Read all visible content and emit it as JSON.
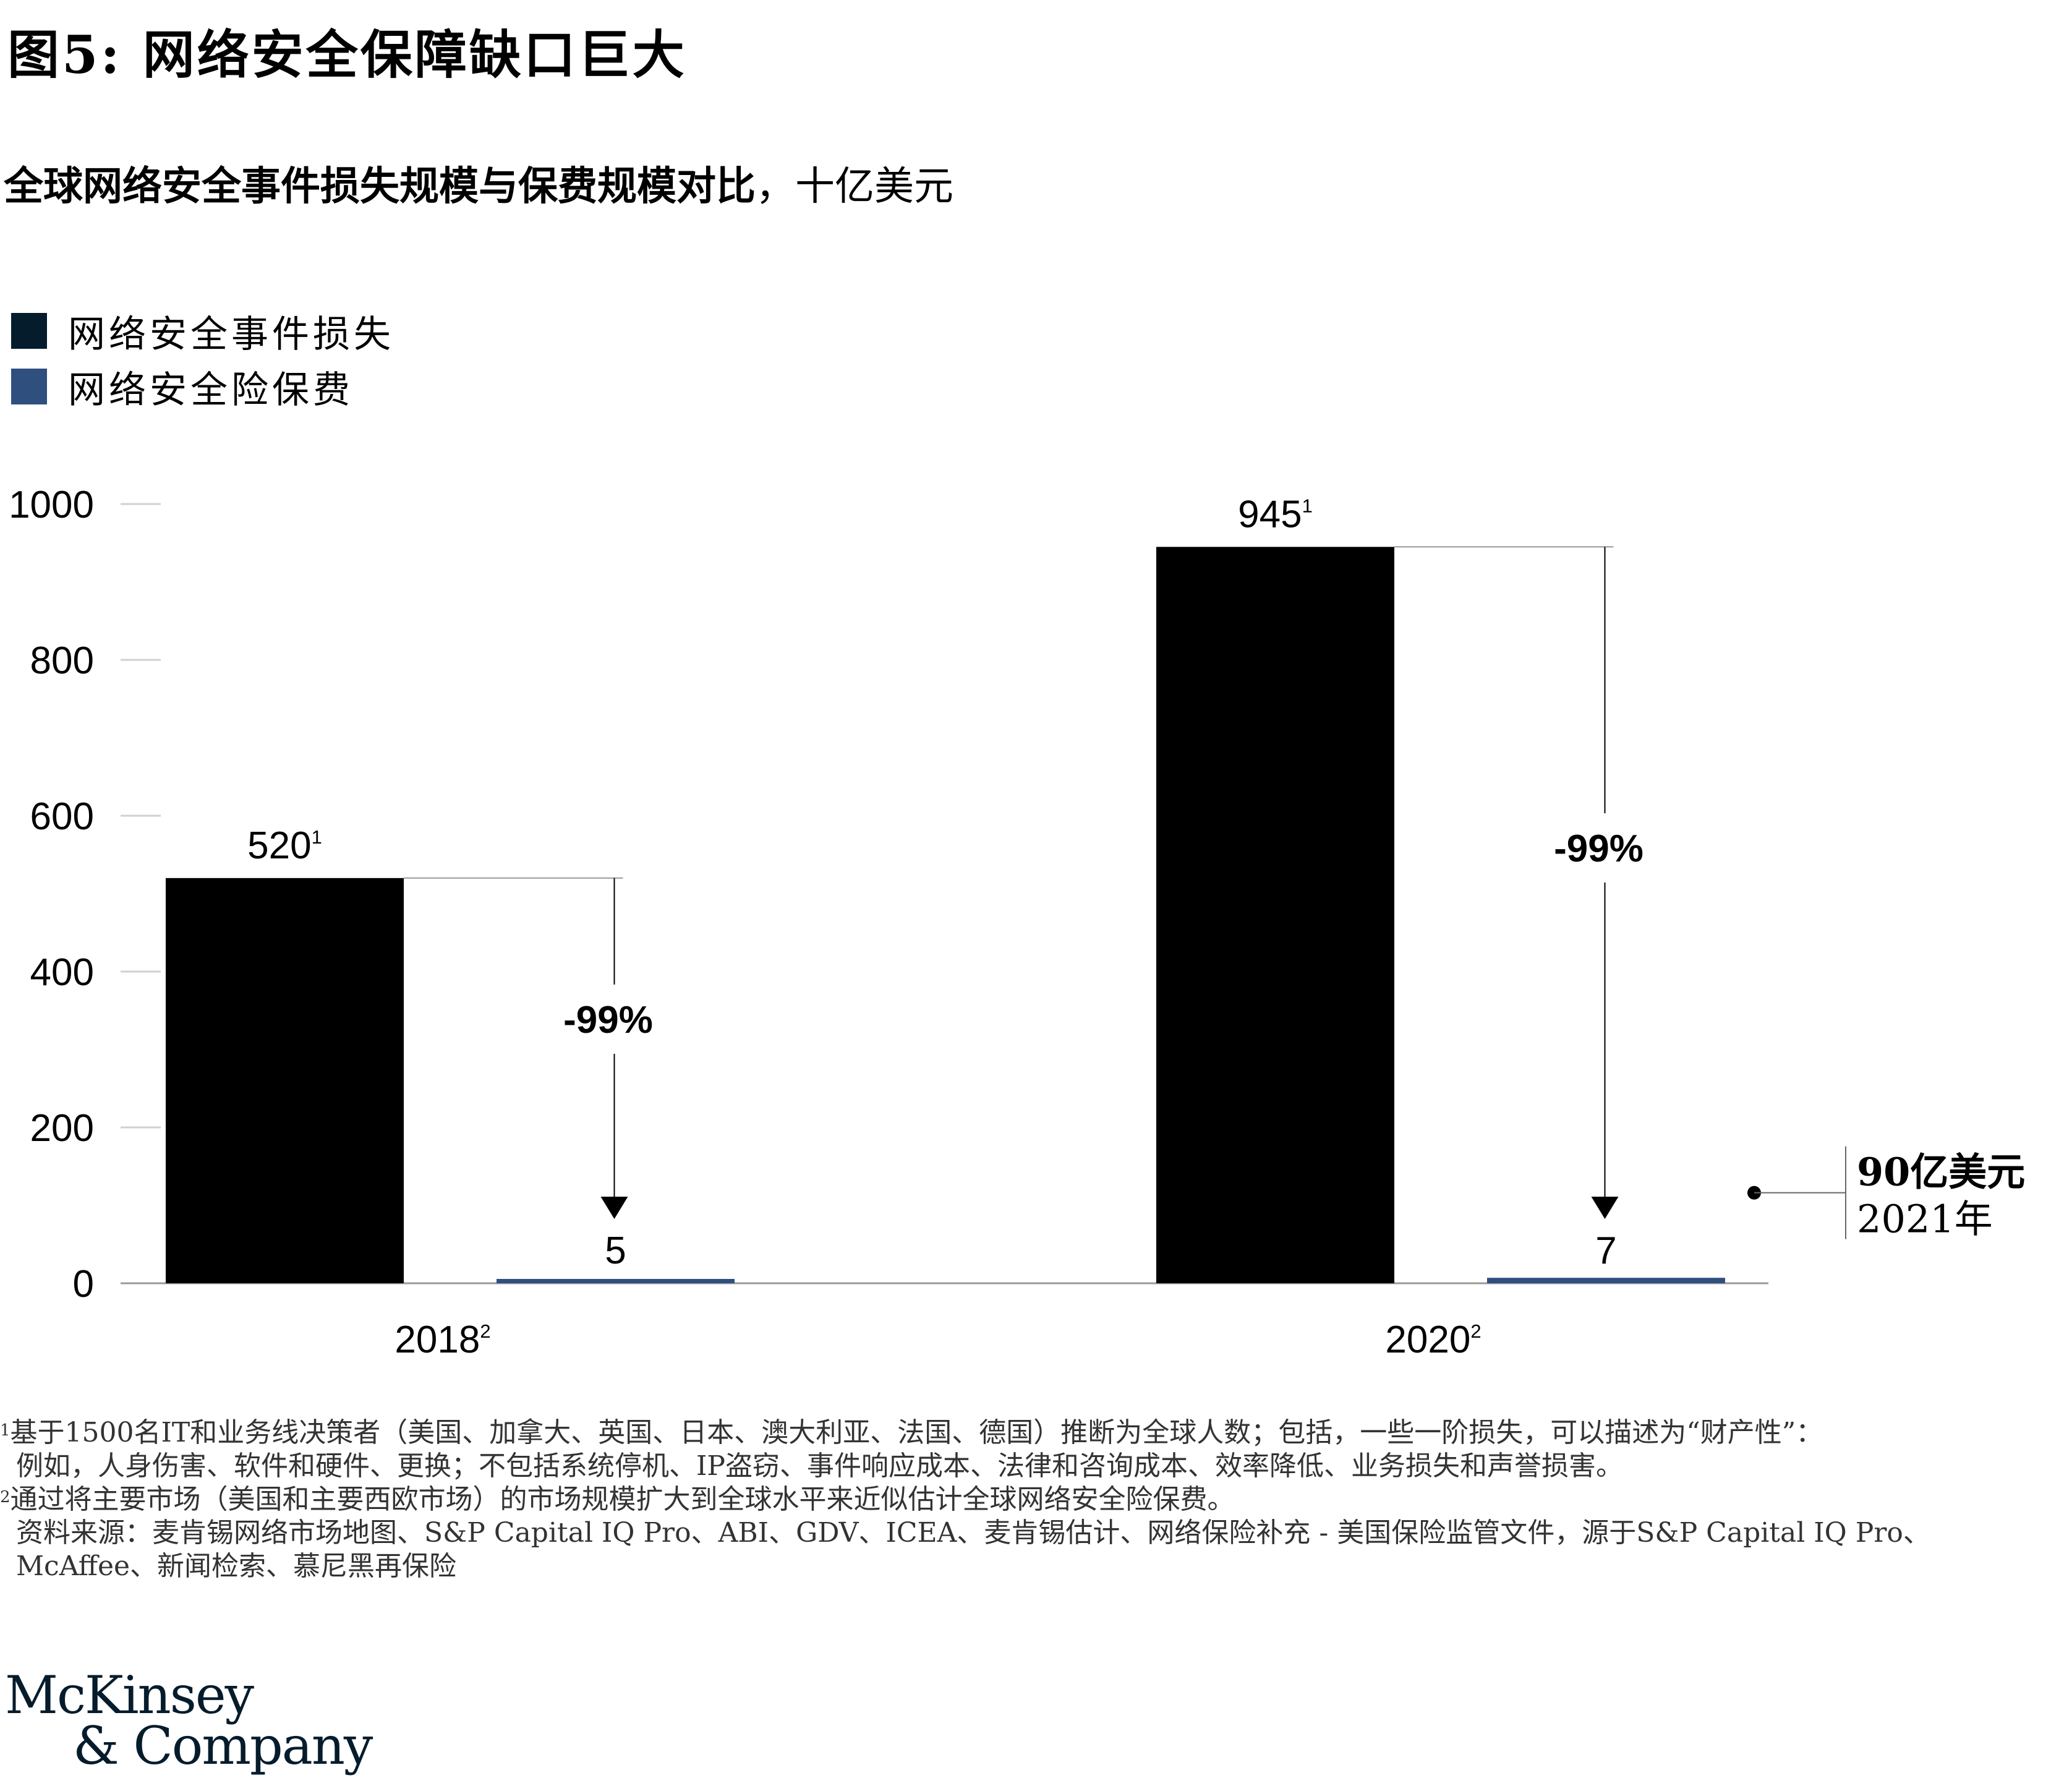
{
  "title": "图5: 网络安全保障缺口巨大",
  "subtitle": {
    "main": "全球网络安全事件损失规模与保费规模对比",
    "unit": "，十亿美元"
  },
  "colors": {
    "loss": "#051c2c",
    "premium": "#2f4f7f",
    "loss_bar": "#000000"
  },
  "legend": [
    {
      "label": "网络安全事件损失",
      "color": "#051c2c"
    },
    {
      "label": "网络安全险保费",
      "color": "#2f4f7f"
    }
  ],
  "chart_data": {
    "type": "bar",
    "categories": [
      "2018",
      "2020"
    ],
    "category_superscripts": [
      "2",
      "2"
    ],
    "series": [
      {
        "name": "网络安全事件损失",
        "values": [
          520,
          945
        ],
        "label_superscripts": [
          "1",
          "1"
        ]
      },
      {
        "name": "网络安全险保费",
        "values": [
          5,
          7
        ]
      }
    ],
    "yticks": [
      0,
      200,
      400,
      600,
      800,
      1000
    ],
    "ylim": [
      0,
      1000
    ],
    "grid": false,
    "legend_position": "top-left",
    "change_labels": [
      "-99%",
      "-99%"
    ],
    "annotation": {
      "value": "90亿美元",
      "year": "2021年",
      "value_num": 9
    }
  },
  "footnotes": {
    "note1_mark": "1",
    "note1_line1": "基于1500名IT和业务线决策者（美国、加拿大、英国、日本、澳大利亚、法国、德国）推断为全球人数；包括，一些一阶损失，可以描述为“财产性”：",
    "note1_line2": "例如，人身伤害、软件和硬件、更换；不包括系统停机、IP盗窃、事件响应成本、法律和咨询成本、效率降低、业务损失和声誉损害。",
    "note2_mark": "2",
    "note2_line1": "通过将主要市场（美国和主要西欧市场）的市场规模扩大到全球水平来近似估计全球网络安全险保费。",
    "source_line1": "资料来源：麦肯锡网络市场地图、S&P Capital IQ Pro、ABI、GDV、ICEA、麦肯锡估计、网络保险补充 - 美国保险监管文件，源于S&P Capital IQ Pro、",
    "source_line2": "McAffee、新闻检索、慕尼黑再保险"
  },
  "logo": {
    "line1": "McKinsey",
    "line2": "& Company"
  }
}
